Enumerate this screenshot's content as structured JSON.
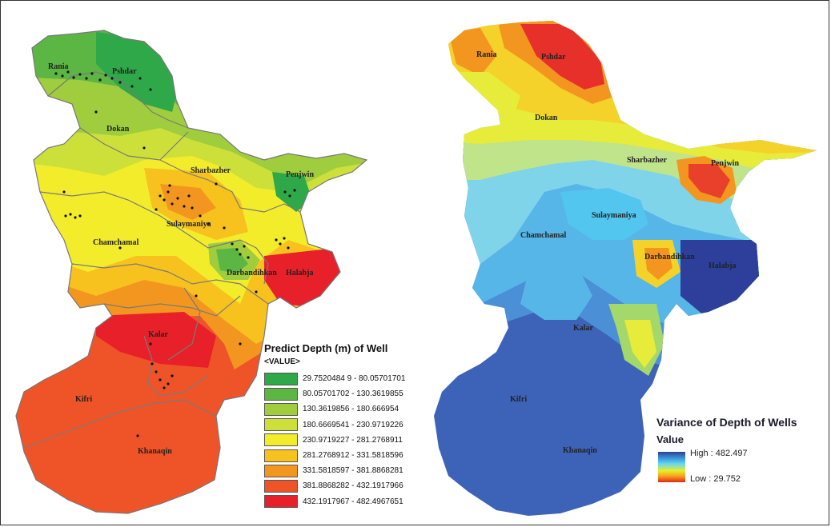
{
  "left_map": {
    "places": [
      {
        "name": "Rania"
      },
      {
        "name": "Pshdar"
      },
      {
        "name": "Dokan"
      },
      {
        "name": "Sharbazher"
      },
      {
        "name": "Penjwin"
      },
      {
        "name": "Sulaymaniya"
      },
      {
        "name": "Chamchamal"
      },
      {
        "name": "Darbandihkan"
      },
      {
        "name": "Halabja"
      },
      {
        "name": "Kalar"
      },
      {
        "name": "Kifri"
      },
      {
        "name": "Khanaqin"
      }
    ],
    "legend": {
      "title": "Predict Depth (m) of Well",
      "subtitle": "<VALUE>",
      "classes": [
        {
          "label": "29.7520484 9 - 80.05701701",
          "color": "#2fa84a"
        },
        {
          "label": "80.05701702 - 130.3619855",
          "color": "#5cb643"
        },
        {
          "label": "130.3619856 - 180.666954",
          "color": "#9fcd3e"
        },
        {
          "label": "180.6669541 - 230.9719226",
          "color": "#cde03a"
        },
        {
          "label": "230.9719227 - 281.2768911",
          "color": "#f3ec2b"
        },
        {
          "label": "281.2768912 - 331.5818596",
          "color": "#f7c21e"
        },
        {
          "label": "331.5818597 - 381.8868281",
          "color": "#f39620"
        },
        {
          "label": "381.8868282 - 432.1917966",
          "color": "#ef5429"
        },
        {
          "label": "432.1917967 - 482.4967651",
          "color": "#e8202a"
        }
      ]
    }
  },
  "right_map": {
    "places": [
      {
        "name": "Rania"
      },
      {
        "name": "Pshdar"
      },
      {
        "name": "Dokan"
      },
      {
        "name": "Sharbazher"
      },
      {
        "name": "Penjwin"
      },
      {
        "name": "Sulaymaniya"
      },
      {
        "name": "Chamchamal"
      },
      {
        "name": "Darbandihkan"
      },
      {
        "name": "Halabja"
      },
      {
        "name": "Kalar"
      },
      {
        "name": "Kifri"
      },
      {
        "name": "Khanaqin"
      }
    ],
    "legend": {
      "title": "Variance of Depth of Wells",
      "subtitle": "Value",
      "high_label": "High : 482.497",
      "low_label": "Low : 29.752"
    }
  }
}
